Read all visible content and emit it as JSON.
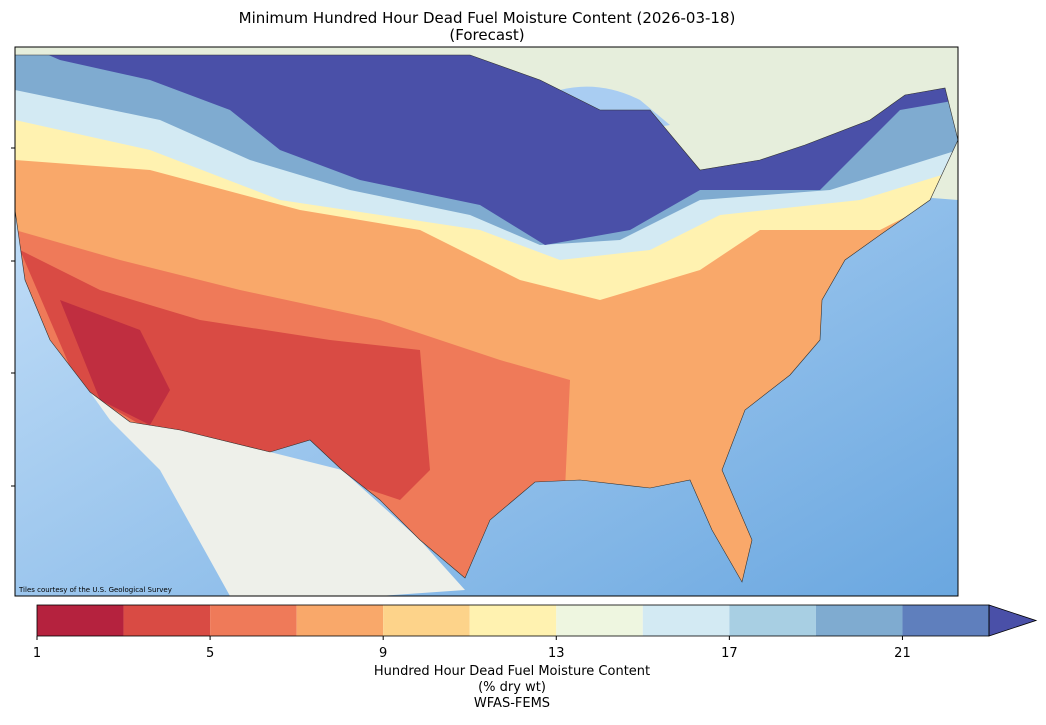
{
  "title": [
    "Minimum Hundred Hour Dead Fuel Moisture Content (2026-03-18)",
    "(Forecast)"
  ],
  "attribution": "Tiles courtesy of the U.S. Geological Survey",
  "colorbar": {
    "boundaries": [
      1,
      3,
      5,
      7,
      9,
      11,
      13,
      15,
      17,
      19,
      21,
      23
    ],
    "colors": [
      "#b5223e",
      "#d94b44",
      "#ef7a59",
      "#f9a86a",
      "#fdd38a",
      "#fff2b0",
      "#eef6e0",
      "#d3eaf3",
      "#a8cfe3",
      "#7fabd0",
      "#5f7fbd"
    ],
    "extend_color": "#4a50a8",
    "ticks": [
      1,
      5,
      9,
      13,
      17,
      21
    ],
    "label": [
      "Hundred Hour Dead Fuel Moisture Content",
      "(% dry wt)",
      "WFAS-FEMS"
    ]
  }
}
